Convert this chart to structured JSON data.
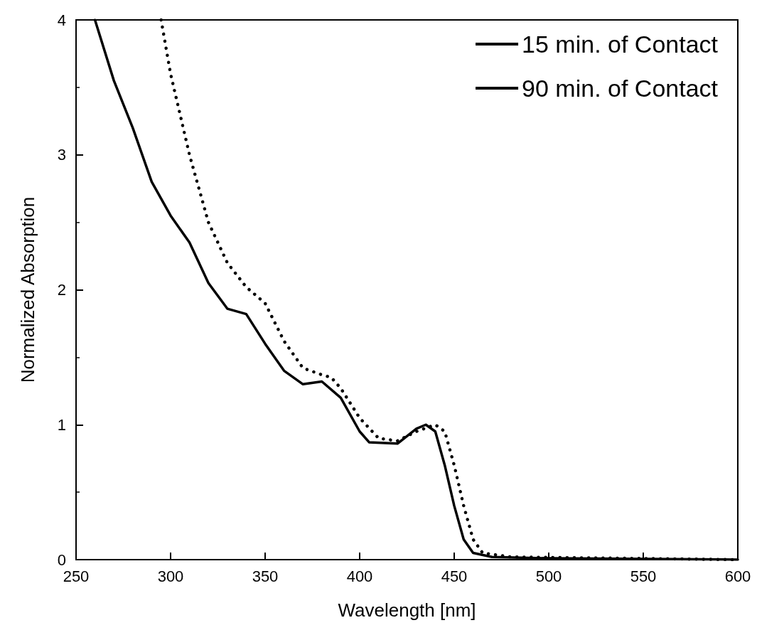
{
  "chart_data": {
    "type": "line",
    "xlabel": "Wavelength [nm]",
    "ylabel": "Normalized Absorption",
    "xlim": [
      250,
      600
    ],
    "xticks": [
      250,
      300,
      350,
      400,
      450,
      500,
      550,
      600
    ],
    "ylim": [
      0,
      4
    ],
    "yticks": [
      0,
      1,
      2,
      3,
      4
    ],
    "grid": false,
    "legend": "top right",
    "marker": "none",
    "series": [
      {
        "name": "15 min. of Contact",
        "color": "#000000",
        "line_style": "solid",
        "x": [
          260,
          270,
          280,
          290,
          300,
          310,
          320,
          330,
          340,
          350,
          360,
          370,
          380,
          390,
          400,
          405,
          420,
          430,
          435,
          440,
          445,
          450,
          455,
          460,
          470,
          500,
          600
        ],
        "values": [
          4.0,
          3.55,
          3.2,
          2.8,
          2.55,
          2.35,
          2.05,
          1.86,
          1.82,
          1.6,
          1.4,
          1.3,
          1.32,
          1.2,
          0.95,
          0.87,
          0.86,
          0.97,
          1.0,
          0.95,
          0.7,
          0.4,
          0.15,
          0.05,
          0.02,
          0.01,
          0.0
        ]
      },
      {
        "name": "90 min. of Contact",
        "color": "#000000",
        "line_style": "dotted",
        "x": [
          295,
          300,
          310,
          320,
          330,
          340,
          350,
          360,
          370,
          380,
          385,
          390,
          400,
          410,
          420,
          430,
          440,
          445,
          450,
          455,
          460,
          465,
          480,
          600
        ],
        "values": [
          4.0,
          3.6,
          3.0,
          2.5,
          2.2,
          2.02,
          1.9,
          1.62,
          1.42,
          1.37,
          1.35,
          1.27,
          1.05,
          0.9,
          0.88,
          0.95,
          1.0,
          0.95,
          0.7,
          0.4,
          0.15,
          0.05,
          0.02,
          0.0
        ]
      }
    ]
  }
}
